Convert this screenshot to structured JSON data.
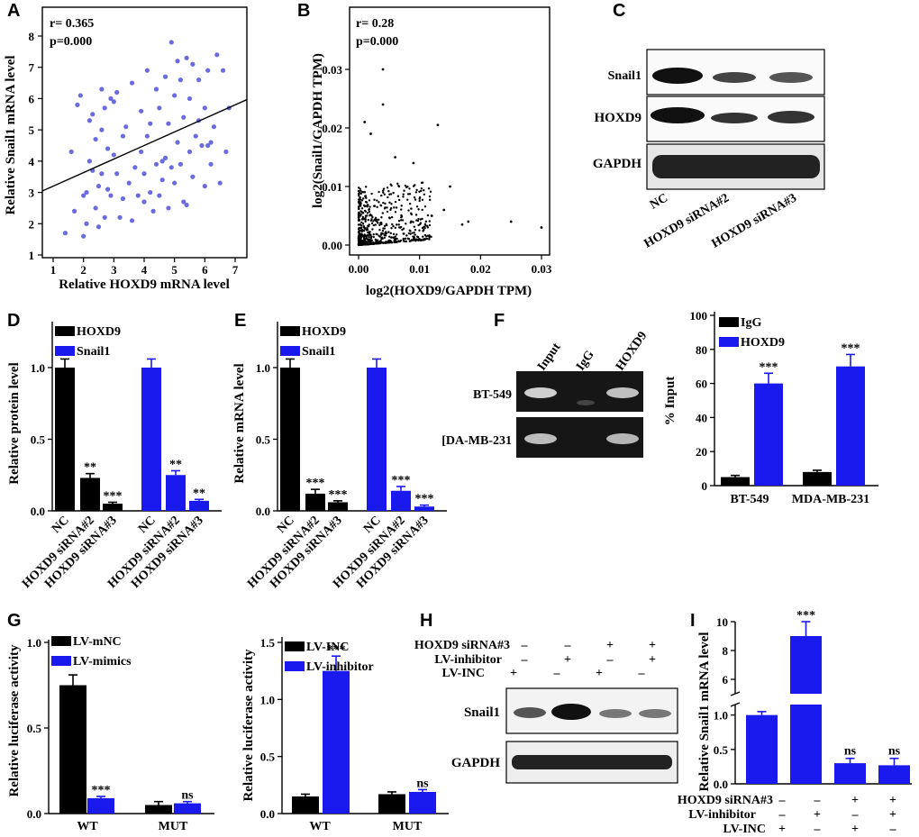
{
  "panels": {
    "A": "A",
    "B": "B",
    "C": "C",
    "D": "D",
    "E": "E",
    "F": "F",
    "G": "G",
    "H": "H",
    "I": "I"
  },
  "colors": {
    "black": "#000000",
    "blue": "#1a1aee",
    "scatterA": "#6b6be0"
  },
  "chart_data": [
    {
      "id": "A",
      "type": "scatter",
      "stats": {
        "r": "r= 0.365",
        "p": "p=0.000"
      },
      "xlabel": "Relative HOXD9 mRNA level",
      "ylabel": "Relative Snail1 mRNA level",
      "xlim": [
        1,
        7
      ],
      "ylim": [
        1,
        8
      ],
      "xticks": [
        "1",
        "2",
        "3",
        "4",
        "5",
        "6",
        "7"
      ],
      "yticks": [
        "1",
        "2",
        "3",
        "4",
        "5",
        "6",
        "7",
        "8"
      ],
      "fit": {
        "x": [
          1,
          7
        ],
        "y": [
          3.2,
          5.8
        ]
      },
      "points": {
        "x": [
          1.4,
          1.7,
          1.8,
          1.9,
          2.0,
          2.1,
          2.1,
          2.2,
          2.2,
          2.3,
          2.3,
          2.4,
          2.4,
          2.5,
          2.5,
          2.6,
          2.6,
          2.7,
          2.7,
          2.8,
          2.8,
          2.9,
          2.9,
          3.0,
          3.0,
          3.1,
          3.1,
          3.2,
          3.3,
          3.4,
          3.5,
          3.6,
          3.6,
          3.7,
          3.8,
          3.9,
          3.9,
          4.0,
          4.0,
          4.1,
          4.1,
          4.2,
          4.2,
          4.3,
          4.4,
          4.4,
          4.5,
          4.5,
          4.6,
          4.7,
          4.7,
          4.8,
          4.8,
          4.9,
          4.9,
          5.0,
          5.0,
          5.1,
          5.1,
          5.2,
          5.2,
          5.3,
          5.3,
          5.4,
          5.5,
          5.5,
          5.6,
          5.6,
          5.7,
          5.8,
          5.8,
          5.9,
          6.0,
          6.0,
          6.1,
          6.2,
          6.2,
          6.3,
          6.4,
          6.5,
          6.6,
          6.7,
          6.8,
          2.0,
          2.6,
          3.3,
          4.6,
          5.4,
          6.1,
          1.6
        ],
        "y": [
          1.7,
          2.4,
          5.8,
          6.1,
          1.6,
          2.0,
          3.0,
          4.0,
          5.3,
          3.7,
          5.5,
          2.5,
          4.7,
          1.9,
          3.2,
          5.0,
          6.3,
          2.2,
          5.7,
          3.1,
          4.4,
          2.9,
          6.0,
          4.2,
          5.9,
          3.6,
          6.2,
          2.2,
          4.8,
          5.1,
          3.3,
          2.1,
          6.5,
          3.8,
          2.9,
          4.3,
          5.6,
          2.7,
          3.6,
          4.8,
          6.9,
          3.0,
          5.2,
          2.4,
          3.9,
          6.3,
          2.9,
          5.7,
          3.4,
          4.1,
          6.7,
          2.5,
          5.2,
          3.8,
          7.8,
          3.3,
          6.1,
          4.6,
          7.2,
          3.9,
          6.6,
          2.7,
          5.4,
          7.3,
          4.3,
          6.0,
          3.5,
          7.1,
          4.8,
          5.3,
          6.6,
          4.5,
          3.2,
          5.7,
          6.9,
          3.9,
          4.6,
          5.1,
          7.4,
          3.3,
          6.9,
          4.3,
          5.7,
          2.9,
          3.6,
          2.8,
          4.0,
          2.6,
          4.5,
          4.3
        ]
      }
    },
    {
      "id": "B",
      "type": "scatter",
      "stats": {
        "r": "r= 0.28",
        "p": "p=0.000"
      },
      "xlabel": "log2(HOXD9/GAPDH TPM)",
      "ylabel": "log2(Snail1/GAPDH TPM)",
      "xlim": [
        0,
        0.03
      ],
      "ylim": [
        0,
        0.03
      ],
      "xticks": [
        "0.00",
        "0.01",
        "0.02",
        "0.03"
      ],
      "yticks": [
        "0.00",
        "0.01",
        "0.02",
        "0.03"
      ]
    },
    {
      "id": "D",
      "type": "bar",
      "ylabel": "Relative protein level",
      "ylim": [
        0,
        1.0
      ],
      "yticks": [
        "0.0",
        "0.5",
        "1.0"
      ],
      "legend": [
        "HOXD9",
        "Snail1"
      ],
      "categories": [
        "NC",
        "HOXD9 siRNA#2",
        "HOXD9 siRNA#3",
        "NC",
        "HOXD9 siRNA#2",
        "HOXD9 siRNA#3"
      ],
      "values": [
        1.0,
        0.23,
        0.05,
        1.0,
        0.25,
        0.07
      ],
      "errors": [
        0.06,
        0.03,
        0.01,
        0.06,
        0.03,
        0.01
      ],
      "series_of": [
        "black",
        "black",
        "black",
        "blue",
        "blue",
        "blue"
      ],
      "stars": [
        "",
        "**",
        "***",
        "",
        "**",
        "**"
      ]
    },
    {
      "id": "E",
      "type": "bar",
      "ylabel": "Relative mRNA level",
      "ylim": [
        0,
        1.0
      ],
      "yticks": [
        "0.0",
        "0.5",
        "1.0"
      ],
      "legend": [
        "HOXD9",
        "Snail1"
      ],
      "categories": [
        "NC",
        "HOXD9 siRNA#2",
        "HOXD9 siRNA#3",
        "NC",
        "HOXD9 siRNA#2",
        "HOXD9 siRNA#3"
      ],
      "values": [
        1.0,
        0.12,
        0.06,
        1.0,
        0.14,
        0.03
      ],
      "errors": [
        0.06,
        0.03,
        0.01,
        0.06,
        0.03,
        0.01
      ],
      "series_of": [
        "black",
        "black",
        "black",
        "blue",
        "blue",
        "blue"
      ],
      "stars": [
        "",
        "***",
        "***",
        "",
        "***",
        "***"
      ]
    },
    {
      "id": "F",
      "type": "bar",
      "ylabel": "% Input",
      "ylim": [
        0,
        100
      ],
      "yticks": [
        "0",
        "20",
        "40",
        "60",
        "80",
        "100"
      ],
      "legend": [
        "IgG",
        "HOXD9"
      ],
      "categories": [
        "BT-549",
        "MDA-MB-231"
      ],
      "series": [
        {
          "name": "IgG",
          "values": [
            5,
            8
          ],
          "errors": [
            1,
            1
          ]
        },
        {
          "name": "HOXD9",
          "values": [
            60,
            70
          ],
          "errors": [
            6,
            7
          ]
        }
      ],
      "stars": [
        "***",
        "***"
      ]
    },
    {
      "id": "G1",
      "type": "bar",
      "ylabel": "Relative luciferase activity",
      "ylim": [
        0,
        1.0
      ],
      "yticks": [
        "0.0",
        "0.5",
        "1.0"
      ],
      "legend": [
        "LV-mNC",
        "LV-mimics"
      ],
      "categories": [
        "WT",
        "MUT"
      ],
      "series": [
        {
          "name": "LV-mNC",
          "values": [
            0.75,
            0.05
          ],
          "errors": [
            0.06,
            0.02
          ]
        },
        {
          "name": "LV-mimics",
          "values": [
            0.09,
            0.06
          ],
          "errors": [
            0.01,
            0.01
          ]
        }
      ],
      "stars": [
        "***",
        "ns"
      ]
    },
    {
      "id": "G2",
      "type": "bar",
      "ylabel": "Relative luciferase activity",
      "ylim": [
        0,
        1.5
      ],
      "yticks": [
        "0.0",
        "0.5",
        "1.0",
        "1.5"
      ],
      "legend": [
        "LV-INC",
        "LV-inhibitor"
      ],
      "categories": [
        "WT",
        "MUT"
      ],
      "series": [
        {
          "name": "LV-INC",
          "values": [
            0.15,
            0.17
          ],
          "errors": [
            0.02,
            0.02
          ]
        },
        {
          "name": "LV-inhibitor",
          "values": [
            1.25,
            0.19
          ],
          "errors": [
            0.13,
            0.02
          ]
        }
      ],
      "stars": [
        "***",
        "ns"
      ]
    },
    {
      "id": "I",
      "type": "bar",
      "ylabel": "Relative Snail1 mRNA level",
      "yticks_top": [
        "6",
        "8",
        "10"
      ],
      "yticks_bottom": [
        "0.0",
        "0.5",
        "1.0"
      ],
      "values": [
        1.0,
        9.0,
        0.3,
        0.27
      ],
      "errors": [
        0.05,
        1.0,
        0.07,
        0.1
      ],
      "stars": [
        "",
        "***",
        "ns",
        "ns"
      ],
      "conditions": [
        {
          "name": "HOXD9 siRNA#3",
          "marks": [
            "–",
            "–",
            "+",
            "+"
          ]
        },
        {
          "name": "LV-inhibitor",
          "marks": [
            "–",
            "+",
            "–",
            "+"
          ]
        },
        {
          "name": "LV-INC",
          "marks": [
            "+",
            "–",
            "+",
            "–"
          ]
        }
      ]
    }
  ],
  "blotC": {
    "rows": [
      "Snail1",
      "HOXD9",
      "GAPDH"
    ],
    "lanes": [
      "NC",
      "HOXD9 siRNA#2",
      "HOXD9 siRNA#3"
    ]
  },
  "gelF": {
    "lanes": [
      "Input",
      "IgG",
      "HOXD9"
    ],
    "rows": [
      "BT-549",
      "[DA-MB-231"
    ]
  },
  "blotH": {
    "conditions": [
      {
        "name": "HOXD9 siRNA#3",
        "marks": [
          "–",
          "–",
          "+",
          "+"
        ]
      },
      {
        "name": "LV-inhibitor",
        "marks": [
          "–",
          "+",
          "–",
          "+"
        ]
      },
      {
        "name": "LV-INC",
        "marks": [
          "+",
          "–",
          "+",
          "–"
        ]
      }
    ],
    "rows": [
      "Snail1",
      "GAPDH"
    ]
  }
}
